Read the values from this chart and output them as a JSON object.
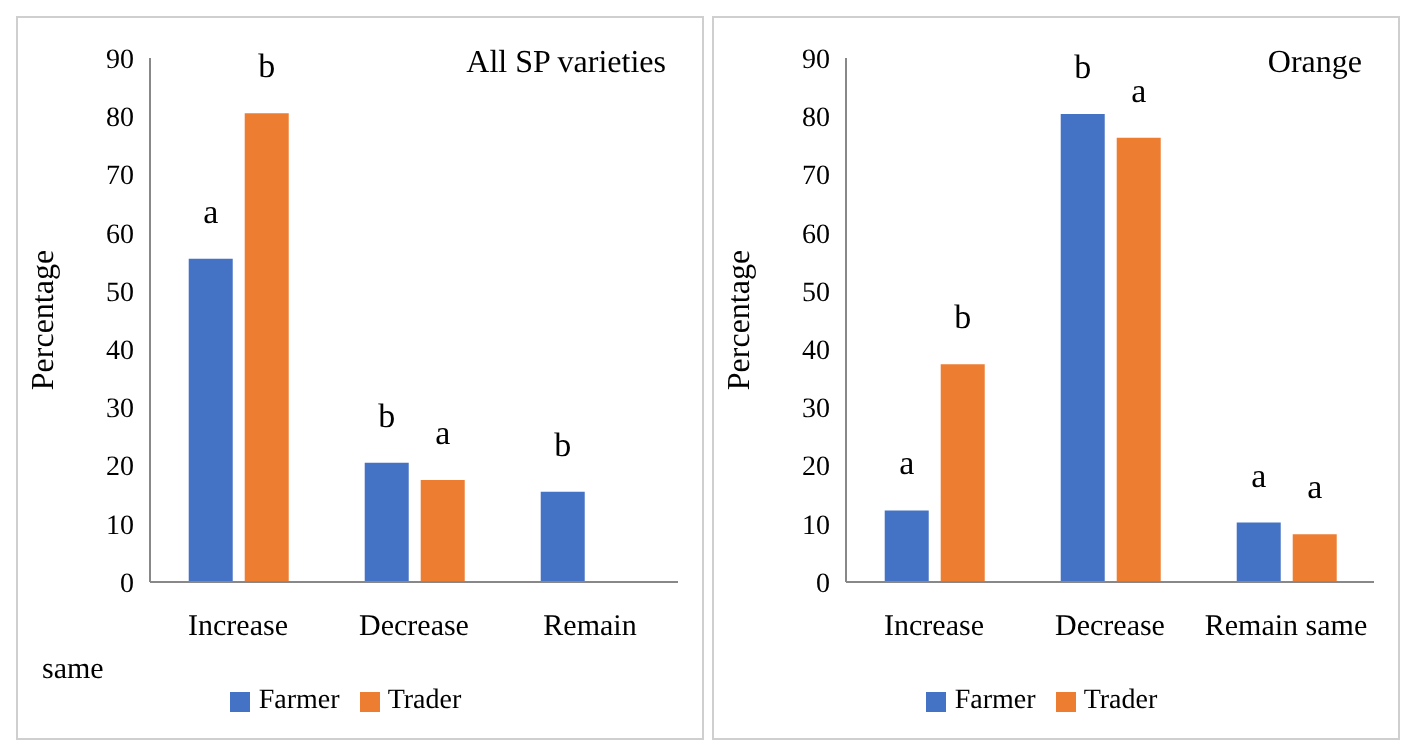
{
  "chart_data": [
    {
      "type": "bar",
      "title": "All SP varieties",
      "ylabel": "Percentage",
      "categories": [
        "Increase",
        "Decrease",
        "Remain"
      ],
      "ylim": [
        0,
        90
      ],
      "yticks": [
        0,
        10,
        20,
        30,
        40,
        50,
        60,
        70,
        80,
        90
      ],
      "grid": false,
      "legend": "bottom",
      "annotations": [
        "same"
      ],
      "series": [
        {
          "name": "Farmer",
          "color": "#4472c4",
          "values": [
            55.5,
            20.5,
            15.5
          ],
          "value_labels": [
            "a",
            "b",
            "b"
          ]
        },
        {
          "name": "Trader",
          "color": "#ed7d31",
          "values": [
            80.5,
            17.5,
            null
          ],
          "value_labels": [
            "b",
            "a",
            null
          ]
        }
      ]
    },
    {
      "type": "bar",
      "title": "Orange",
      "ylabel": "Percentage",
      "categories": [
        "Increase",
        "Decrease",
        "Remain same"
      ],
      "ylim": [
        0,
        90
      ],
      "yticks": [
        0,
        10,
        20,
        30,
        40,
        50,
        60,
        70,
        80,
        90
      ],
      "grid": false,
      "legend": "bottom",
      "series": [
        {
          "name": "Farmer",
          "color": "#4472c4",
          "values": [
            12.3,
            80.4,
            10.2
          ],
          "value_labels": [
            "a",
            "b",
            "a"
          ]
        },
        {
          "name": "Trader",
          "color": "#ed7d31",
          "values": [
            37.4,
            76.3,
            8.2
          ],
          "value_labels": [
            "b",
            "a",
            "a"
          ]
        }
      ]
    }
  ]
}
